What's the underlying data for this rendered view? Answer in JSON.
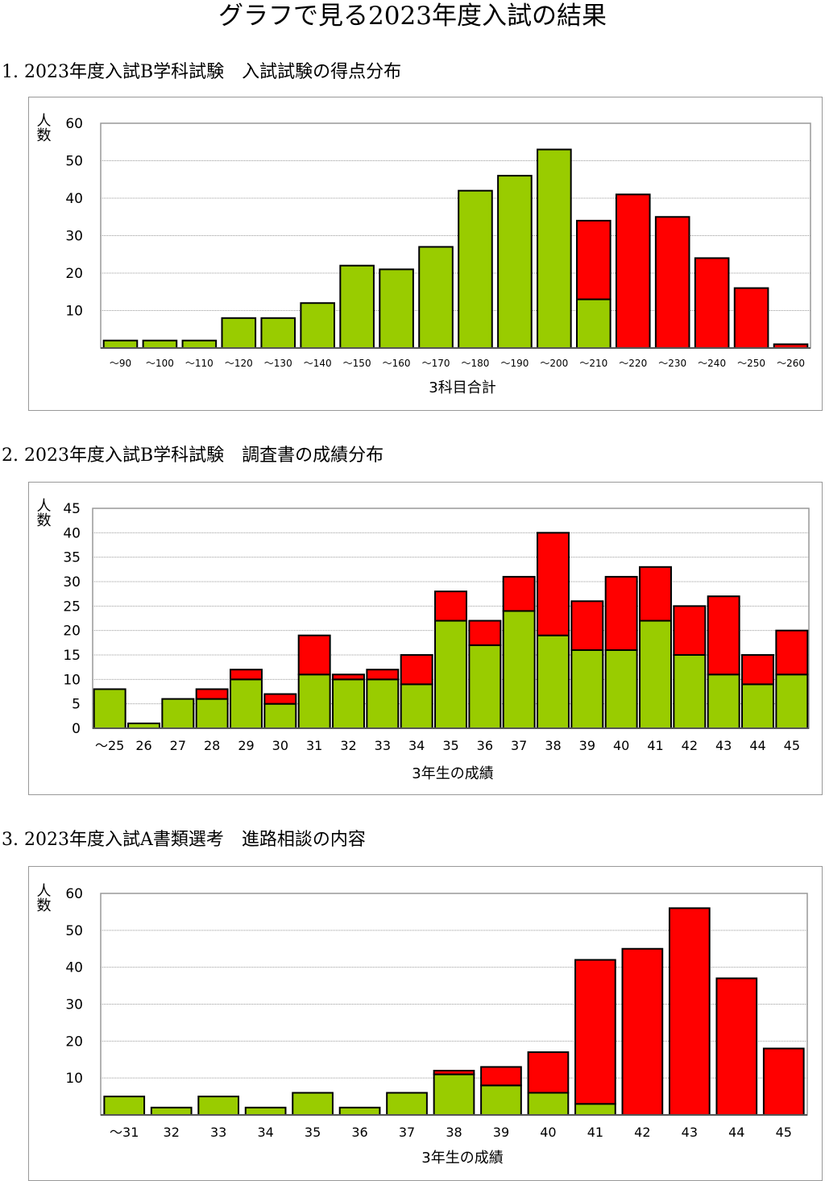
{
  "page_title": "グラフで見る2023年度入試の結果",
  "colors": {
    "green": "#99CC00",
    "red": "#FF0000"
  },
  "chart_data": [
    {
      "type": "bar",
      "stacked": true,
      "heading": "1. 2023年度入試B学科試験　入試試験の得点分布",
      "ylabel": "人数",
      "xlabel": "3科目合計",
      "ylim": [
        0,
        60
      ],
      "yticks": [
        10,
        20,
        30,
        40,
        50,
        60
      ],
      "grid": true,
      "categories": [
        "～90",
        "～100",
        "～110",
        "～120",
        "～130",
        "～140",
        "～150",
        "～160",
        "～170",
        "～180",
        "～190",
        "～200",
        "～210",
        "～220",
        "～230",
        "～240",
        "～250",
        "～260"
      ],
      "series": [
        {
          "color": "#99CC00",
          "values": [
            2,
            2,
            2,
            8,
            8,
            12,
            22,
            21,
            27,
            42,
            46,
            53,
            13,
            0,
            0,
            0,
            0,
            0
          ]
        },
        {
          "color": "#FF0000",
          "values": [
            0,
            0,
            0,
            0,
            0,
            0,
            0,
            0,
            0,
            0,
            0,
            0,
            21,
            41,
            35,
            24,
            16,
            1
          ]
        }
      ]
    },
    {
      "type": "bar",
      "stacked": true,
      "heading": "2. 2023年度入試B学科試験　調査書の成績分布",
      "ylabel": "人数",
      "xlabel": "3年生の成績",
      "ylim": [
        0,
        45
      ],
      "yticks": [
        0,
        5,
        10,
        15,
        20,
        25,
        30,
        35,
        40,
        45
      ],
      "grid": true,
      "categories": [
        "～25",
        "26",
        "27",
        "28",
        "29",
        "30",
        "31",
        "32",
        "33",
        "34",
        "35",
        "36",
        "37",
        "38",
        "39",
        "40",
        "41",
        "42",
        "43",
        "44",
        "45"
      ],
      "series": [
        {
          "color": "#99CC00",
          "values": [
            8,
            1,
            6,
            6,
            10,
            5,
            11,
            10,
            10,
            9,
            22,
            17,
            24,
            19,
            16,
            16,
            22,
            15,
            11,
            9,
            11
          ]
        },
        {
          "color": "#FF0000",
          "values": [
            0,
            0,
            0,
            2,
            2,
            2,
            8,
            1,
            2,
            6,
            6,
            5,
            7,
            21,
            10,
            15,
            11,
            10,
            16,
            6,
            9
          ]
        }
      ]
    },
    {
      "type": "bar",
      "stacked": true,
      "heading": "3. 2023年度入試A書類選考　進路相談の内容",
      "ylabel": "人数",
      "xlabel": "3年生の成績",
      "ylim": [
        0,
        60
      ],
      "yticks": [
        10,
        20,
        30,
        40,
        50,
        60
      ],
      "grid": true,
      "categories": [
        "～31",
        "32",
        "33",
        "34",
        "35",
        "36",
        "37",
        "38",
        "39",
        "40",
        "41",
        "42",
        "43",
        "44",
        "45"
      ],
      "series": [
        {
          "color": "#99CC00",
          "values": [
            5,
            2,
            5,
            2,
            6,
            2,
            6,
            11,
            8,
            6,
            3,
            0,
            0,
            0,
            0
          ]
        },
        {
          "color": "#FF0000",
          "values": [
            0,
            0,
            0,
            0,
            0,
            0,
            0,
            1,
            5,
            11,
            39,
            45,
            56,
            37,
            18
          ]
        }
      ]
    }
  ]
}
